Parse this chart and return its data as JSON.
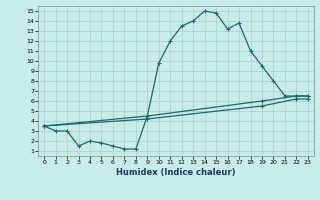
{
  "xlabel": "Humidex (Indice chaleur)",
  "bg_color": "#c8ece8",
  "grid_color": "#b0ccc8",
  "line_color": "#1a6b6b",
  "xlim_min": -0.5,
  "xlim_max": 23.5,
  "ylim_min": 0.5,
  "ylim_max": 15.5,
  "xticks": [
    0,
    1,
    2,
    3,
    4,
    5,
    6,
    7,
    8,
    9,
    10,
    11,
    12,
    13,
    14,
    15,
    16,
    17,
    18,
    19,
    20,
    21,
    22,
    23
  ],
  "yticks": [
    1,
    2,
    3,
    4,
    5,
    6,
    7,
    8,
    9,
    10,
    11,
    12,
    13,
    14,
    15
  ],
  "line1_x": [
    0,
    1,
    2,
    3,
    4,
    5,
    6,
    7,
    8,
    9,
    10,
    11,
    12,
    13,
    14,
    15,
    16,
    17,
    18,
    19,
    20,
    21,
    22,
    23
  ],
  "line1_y": [
    3.5,
    3.0,
    3.0,
    1.5,
    2.0,
    1.8,
    1.5,
    1.2,
    1.2,
    4.5,
    9.8,
    12.0,
    13.5,
    14.0,
    15.0,
    14.8,
    13.2,
    13.8,
    11.0,
    9.5,
    8.0,
    6.5,
    6.5,
    6.5
  ],
  "line2_x": [
    0,
    9,
    19,
    22,
    23
  ],
  "line2_y": [
    3.5,
    4.5,
    6.0,
    6.5,
    6.5
  ],
  "line3_x": [
    0,
    9,
    19,
    22,
    23
  ],
  "line3_y": [
    3.5,
    4.2,
    5.5,
    6.2,
    6.2
  ],
  "xlabel_fontsize": 6,
  "tick_fontsize": 4.5,
  "linewidth": 0.9,
  "markersize": 3
}
